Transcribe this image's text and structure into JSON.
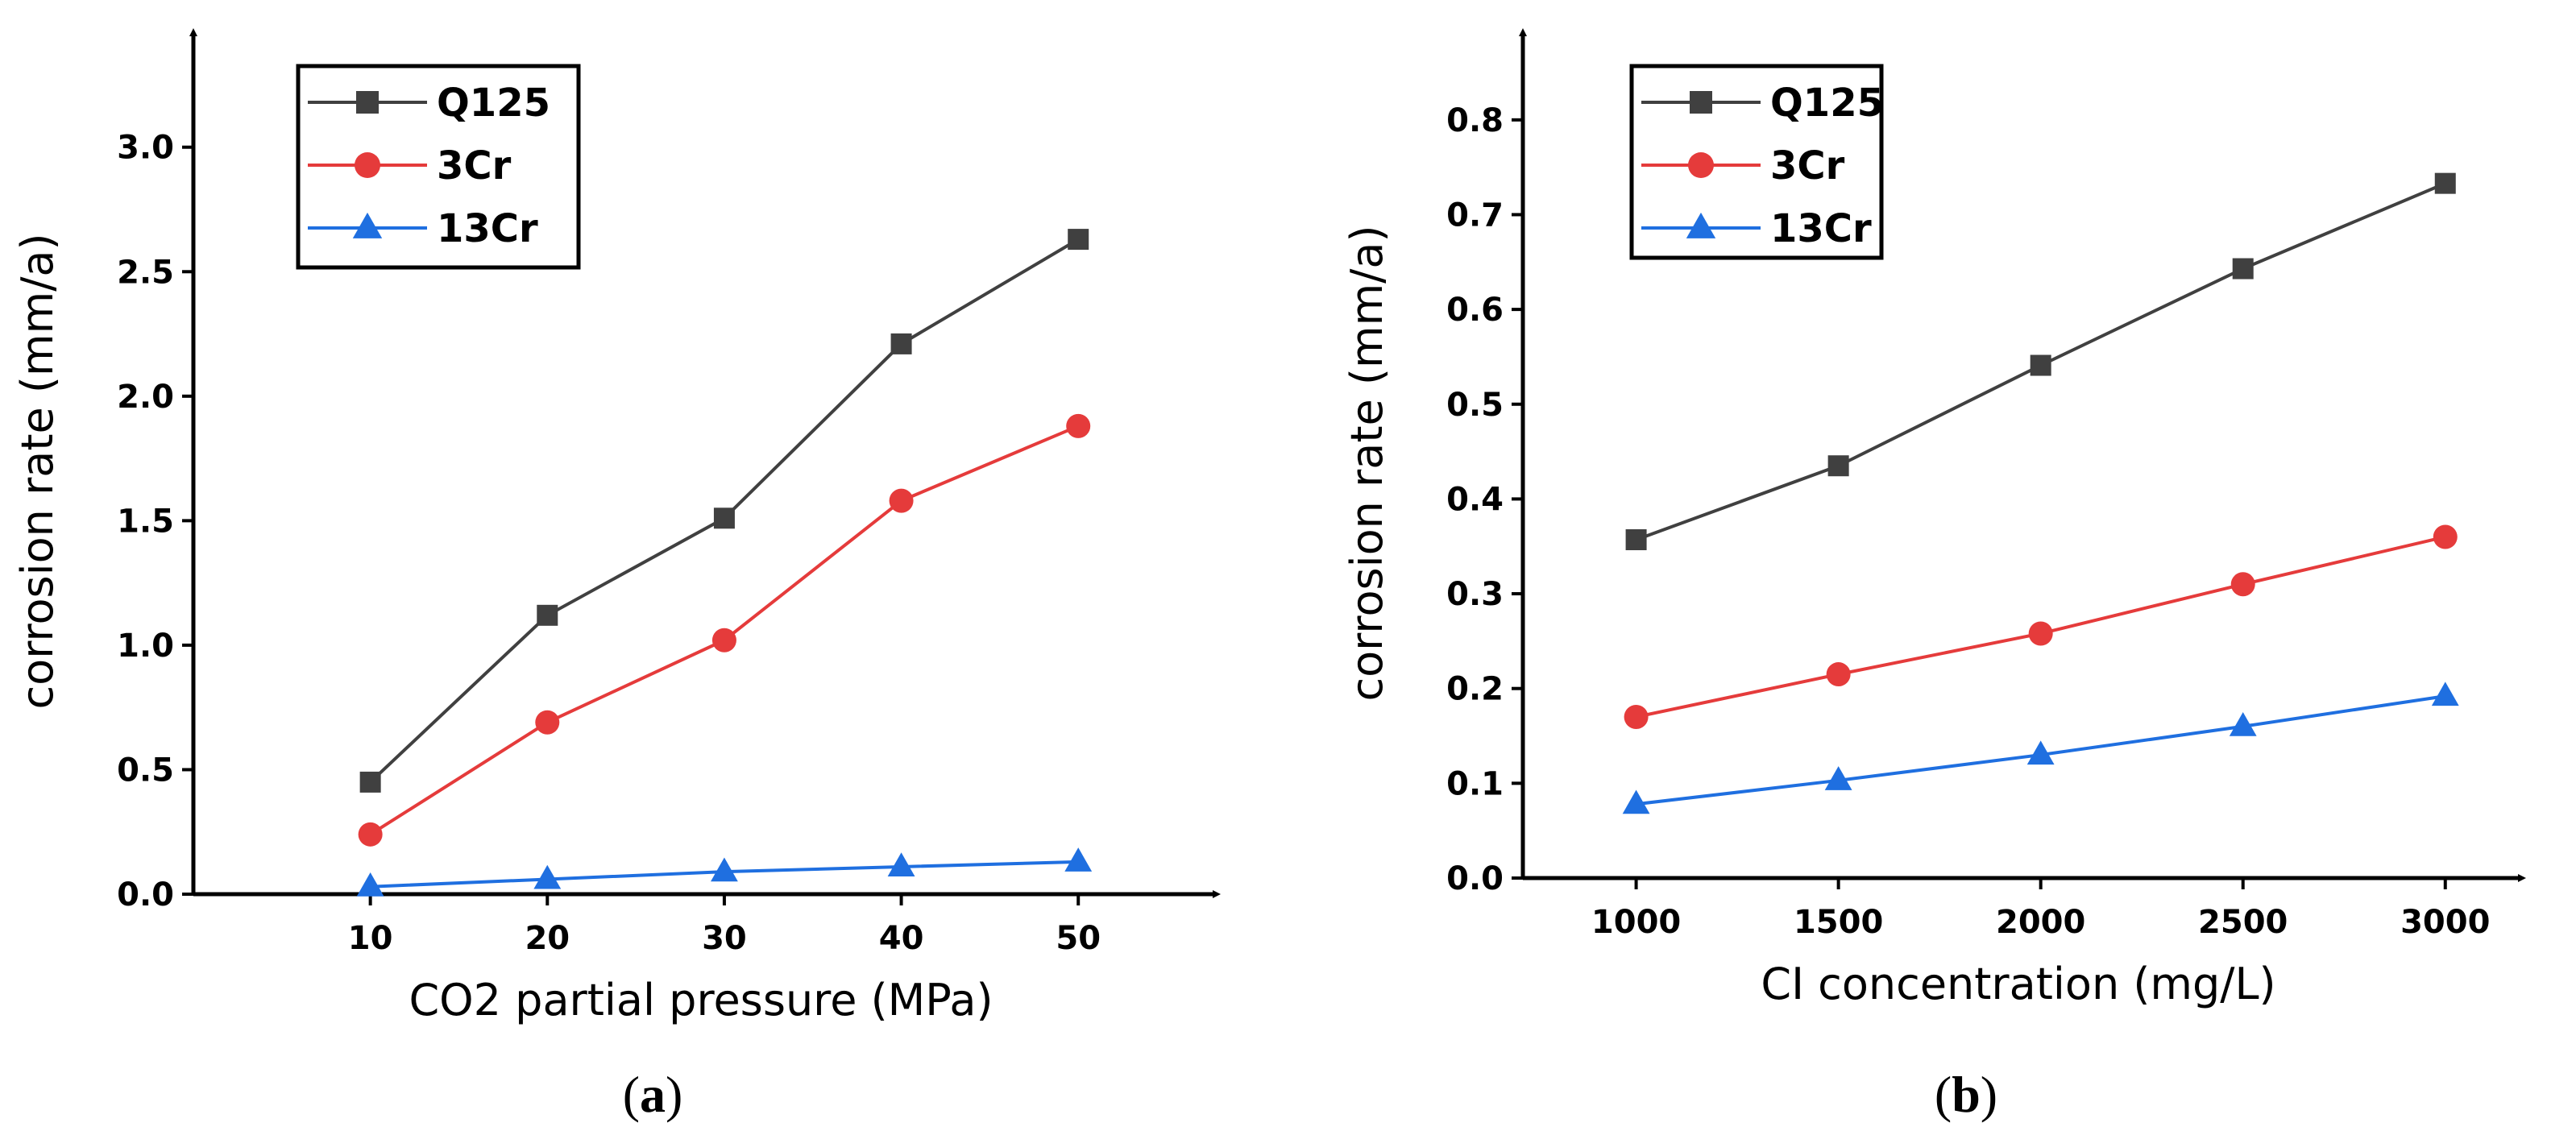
{
  "chart_data": [
    {
      "type": "line",
      "panel_label": {
        "open": "(",
        "letter": "a",
        "close": ")"
      },
      "xlabel": "CO2 partial pressure (MPa)",
      "ylabel": "corrosion rate (mm/a)",
      "x": [
        10,
        20,
        30,
        40,
        50
      ],
      "x_ticks": [
        "10",
        "20",
        "30",
        "40",
        "50"
      ],
      "xlim": [
        0,
        56
      ],
      "ylim": [
        0,
        3.3
      ],
      "y_ticks": [
        "0.0",
        "0.5",
        "1.0",
        "1.5",
        "2.0",
        "2.5",
        "3.0"
      ],
      "legend_position": "top-left",
      "series": [
        {
          "name": "Q125",
          "marker": "square",
          "color": "#404040",
          "values": [
            0.45,
            1.12,
            1.51,
            2.21,
            2.63
          ]
        },
        {
          "name": "3Cr",
          "marker": "circle",
          "color": "#e53b3b",
          "values": [
            0.24,
            0.69,
            1.02,
            1.58,
            1.88
          ]
        },
        {
          "name": "13Cr",
          "marker": "triangle",
          "color": "#1f6fe0",
          "values": [
            0.03,
            0.06,
            0.09,
            0.11,
            0.13
          ]
        }
      ]
    },
    {
      "type": "line",
      "panel_label": {
        "open": "(",
        "letter": "b",
        "close": ")"
      },
      "xlabel": "CI concentration (mg/L)",
      "ylabel": "corrosion rate (mm/a)",
      "x": [
        1000,
        1500,
        2000,
        2500,
        3000
      ],
      "x_ticks": [
        "1000",
        "1500",
        "2000",
        "2500",
        "3000"
      ],
      "xlim": [
        720,
        3110
      ],
      "ylim": [
        0,
        0.85
      ],
      "y_ticks": [
        "0.0",
        "0.1",
        "0.2",
        "0.3",
        "0.4",
        "0.5",
        "0.6",
        "0.7",
        "0.8"
      ],
      "legend_position": "top-left",
      "series": [
        {
          "name": "Q125",
          "marker": "square",
          "color": "#404040",
          "values": [
            0.357,
            0.435,
            0.541,
            0.643,
            0.733
          ]
        },
        {
          "name": "3Cr",
          "marker": "circle",
          "color": "#e53b3b",
          "values": [
            0.17,
            0.215,
            0.258,
            0.31,
            0.36
          ]
        },
        {
          "name": "13Cr",
          "marker": "triangle",
          "color": "#1f6fe0",
          "values": [
            0.078,
            0.103,
            0.13,
            0.16,
            0.192
          ]
        }
      ]
    }
  ]
}
